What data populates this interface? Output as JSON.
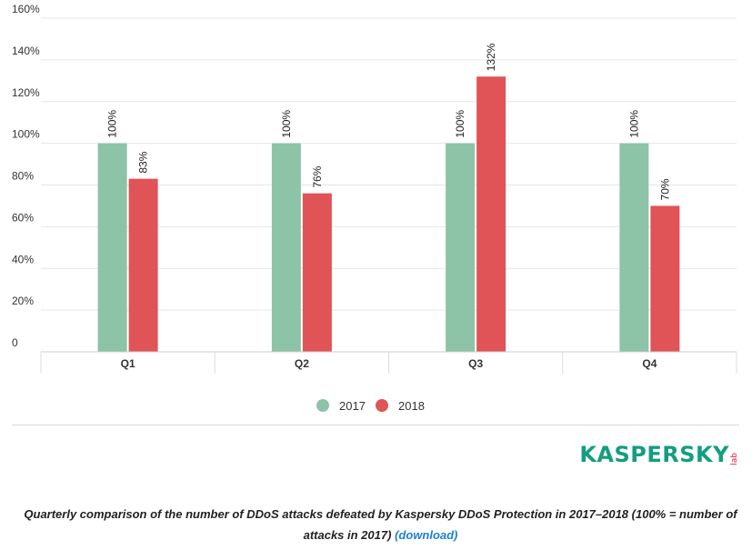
{
  "chart_data": {
    "type": "bar",
    "title": "",
    "xlabel": "",
    "ylabel": "",
    "categories": [
      "Q1",
      "Q2",
      "Q3",
      "Q4"
    ],
    "series": [
      {
        "name": "2017",
        "color": "#8dc3a7",
        "values": [
          100,
          100,
          100,
          100
        ],
        "labels": [
          "100%",
          "100%",
          "100%",
          "100%"
        ]
      },
      {
        "name": "2018",
        "color": "#e05356",
        "values": [
          83,
          76,
          132,
          70
        ],
        "labels": [
          "83%",
          "76%",
          "132%",
          "70%"
        ]
      }
    ],
    "ylim": [
      0,
      160
    ],
    "yticks": [
      0,
      20,
      40,
      60,
      80,
      100,
      120,
      140,
      160
    ],
    "ytick_labels": [
      "0",
      "20%",
      "40%",
      "60%",
      "80%",
      "100%",
      "120%",
      "140%",
      "160%"
    ],
    "grid": true,
    "legend": "bottom-center"
  },
  "logo": {
    "main": "KASPERSKY",
    "sub": "lab"
  },
  "caption": {
    "text": "Quarterly comparison of the number of DDoS attacks defeated by Kaspersky DDoS Protection in 2017–2018 (100% = number of attacks in 2017)",
    "link": "(download)"
  }
}
